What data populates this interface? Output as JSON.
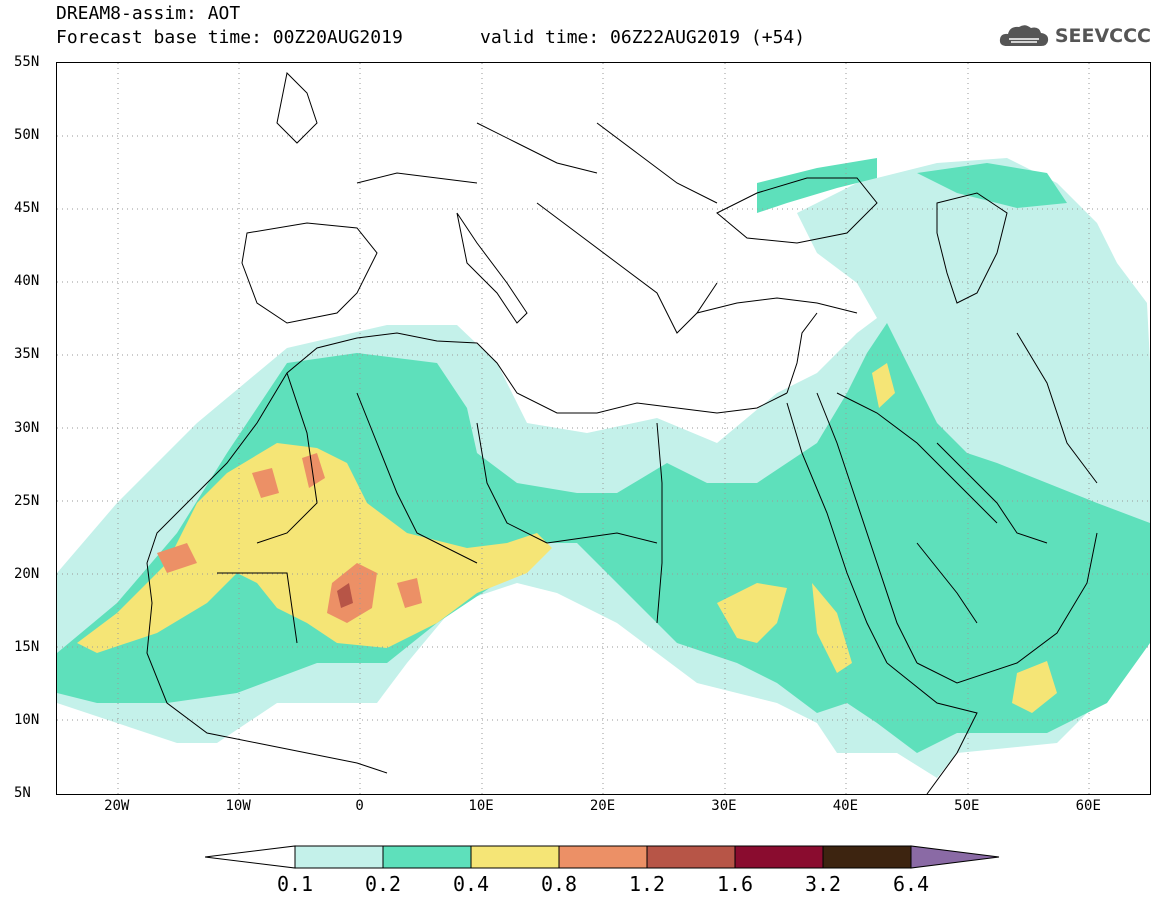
{
  "header": {
    "title": "DREAM8-assim: AOT",
    "base_time": "Forecast base time: 00Z20AUG2019",
    "valid_time": "valid time: 06Z22AUG2019 (+54)",
    "logo_text": "SEEVCCC",
    "logo_icon": "cloud-icon"
  },
  "map": {
    "projection": "cylindrical",
    "lon_range": [
      -25,
      65
    ],
    "lat_range": [
      5,
      55
    ],
    "lat_labels": [
      "55N",
      "50N",
      "45N",
      "40N",
      "35N",
      "30N",
      "25N",
      "20N",
      "15N",
      "10N",
      "5N"
    ],
    "lon_labels": [
      "20W",
      "10W",
      "0",
      "10E",
      "20E",
      "30E",
      "40E",
      "50E",
      "60E"
    ],
    "grid": "dotted"
  },
  "legend": {
    "levels": [
      "0.1",
      "0.2",
      "0.4",
      "0.8",
      "1.2",
      "1.6",
      "3.2",
      "6.4"
    ],
    "colors": {
      "below": "#ffffff",
      "c1": "#c4f1ea",
      "c2": "#5ee0bb",
      "c3": "#f5e576",
      "c4": "#ec9066",
      "c5": "#b75547",
      "c6": "#8a0c2f",
      "c7": "#3d2410",
      "above": "#8a6aa5"
    }
  }
}
